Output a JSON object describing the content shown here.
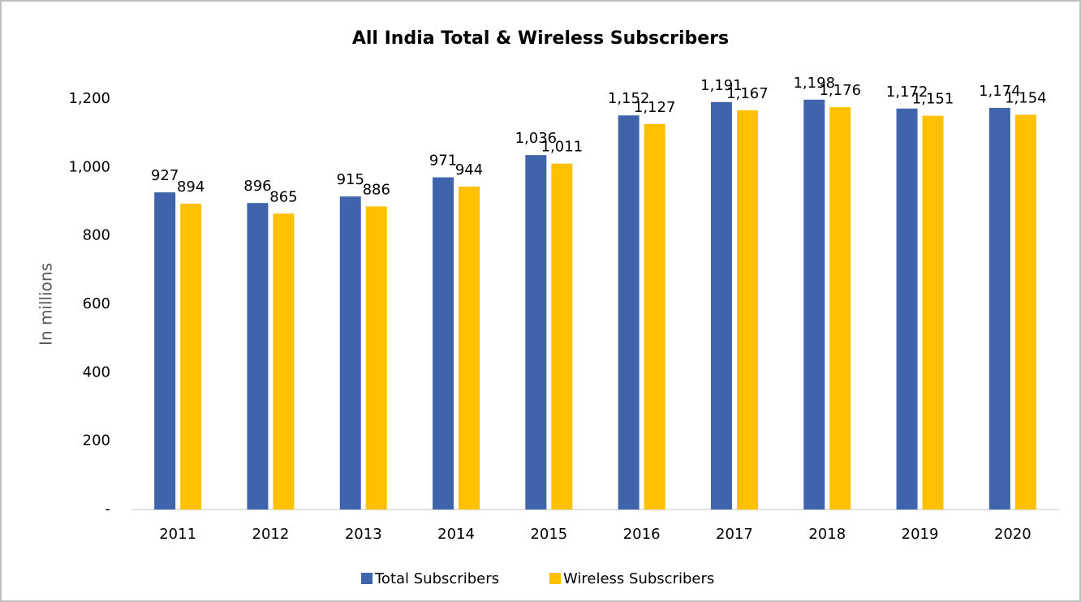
{
  "chart_data": {
    "type": "bar",
    "title": "All India Total & Wireless Subscribers",
    "y_label": "In millions",
    "categories": [
      "2011",
      "2012",
      "2013",
      "2014",
      "2015",
      "2016",
      "2017",
      "2018",
      "2019",
      "2020"
    ],
    "series": [
      {
        "name": "Total Subscribers",
        "color": "#3f64ac",
        "values": [
          927,
          896,
          915,
          971,
          1036,
          1152,
          1191,
          1198,
          1172,
          1174
        ],
        "value_labels": [
          "927",
          "896",
          "915",
          "971",
          "1,036",
          "1,152",
          "1,191",
          "1,198",
          "1,172",
          "1,174"
        ]
      },
      {
        "name": "Wireless Subscribers",
        "color": "#ffc000",
        "values": [
          894,
          865,
          886,
          944,
          1011,
          1127,
          1167,
          1176,
          1151,
          1154
        ],
        "value_labels": [
          "894",
          "865",
          "886",
          "944",
          "1,011",
          "1,127",
          "1,167",
          "1,176",
          "1,151",
          "1,154"
        ]
      }
    ],
    "ylim": [
      0,
      1200
    ],
    "yticks": [
      {
        "value": 0,
        "label": "-"
      },
      200,
      400,
      600,
      800,
      {
        "value": 1000,
        "label": "1,000"
      },
      {
        "value": 1200,
        "label": "1,200"
      }
    ],
    "grid": false,
    "legend": "bottom"
  }
}
